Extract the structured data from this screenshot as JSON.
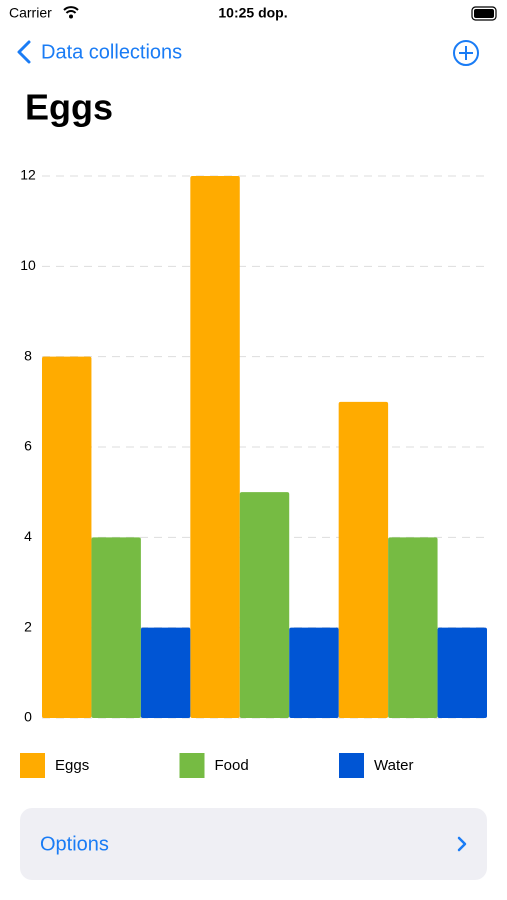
{
  "status_bar": {
    "carrier": "Carrier",
    "time": "10:25 dop."
  },
  "nav": {
    "back": "Data collections"
  },
  "header": {
    "title": "Eggs"
  },
  "chart_data": {
    "type": "bar",
    "categories": [
      null,
      null,
      null
    ],
    "series": [
      {
        "name": "Eggs",
        "color": "#ffab00",
        "values": [
          8,
          12,
          7
        ]
      },
      {
        "name": "Food",
        "color": "#76bb43",
        "values": [
          4,
          5,
          4
        ]
      },
      {
        "name": "Water",
        "color": "#0055d4",
        "values": [
          2,
          2,
          2
        ]
      }
    ],
    "ylim": [
      0,
      12
    ],
    "yticks": [
      0,
      2,
      4,
      6,
      8,
      10,
      12
    ],
    "grid": true
  },
  "options": {
    "label": "Options"
  }
}
